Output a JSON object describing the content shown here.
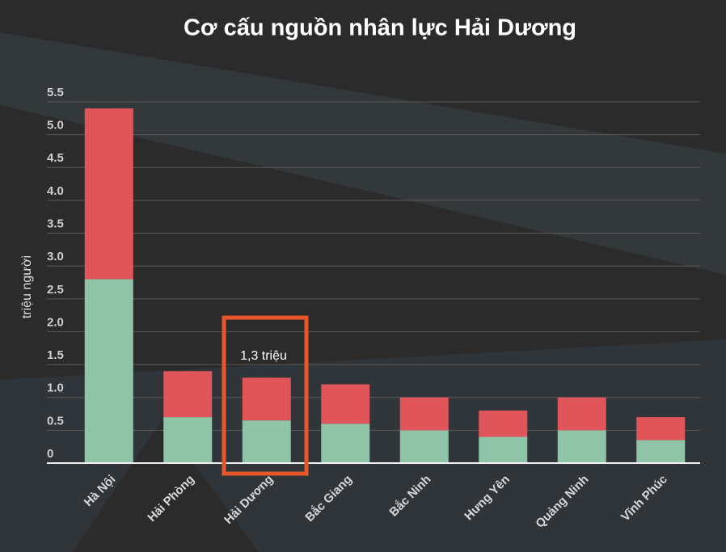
{
  "chart_data": {
    "type": "stacked_bar",
    "title": "Cơ cấu nguồn nhân lực Hải Dương",
    "y_label": "triệu người",
    "annotation": "1,3 triệu",
    "categories": [
      "Hà Nội",
      "Hải Phòng",
      "Hải Dương",
      "Bắc Giang",
      "Bắc Ninh",
      "Hưng Yên",
      "Quảng Ninh",
      "Vĩnh Phúc"
    ],
    "series": [
      {
        "color": "#8fc4a9",
        "values": [
          2.8,
          0.7,
          0.65,
          0.6,
          0.5,
          0.4,
          0.5,
          0.35
        ]
      },
      {
        "color": "#e0555a",
        "values": [
          2.6,
          0.7,
          0.65,
          0.6,
          0.5,
          0.4,
          0.5,
          0.35
        ]
      }
    ],
    "ylim": [
      0,
      5.5
    ],
    "yticks": [
      0,
      0.5,
      {
        "value": 1,
        "label": "1.0"
      },
      1.5,
      {
        "value": 2,
        "label": "2.0"
      },
      2.5,
      {
        "value": 3,
        "label": "3.0"
      },
      3.5,
      {
        "value": 4,
        "label": "4.0"
      },
      4.5,
      {
        "value": 5,
        "label": "5.0"
      },
      5.5
    ],
    "grid": true
  }
}
